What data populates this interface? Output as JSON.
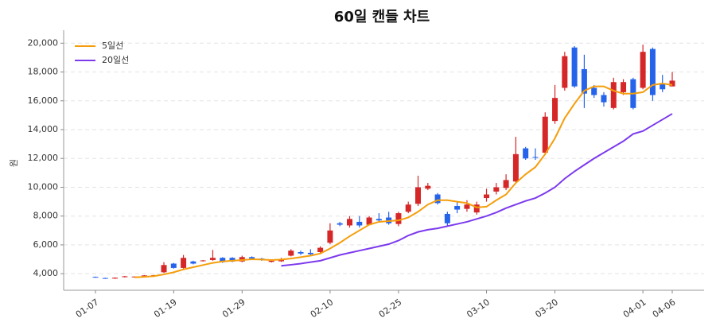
{
  "chart_data": {
    "type": "candlestick",
    "title": "60일 캔들 차트",
    "ylabel": "원",
    "categories": [
      "01-07",
      null,
      null,
      null,
      null,
      null,
      null,
      null,
      "01-19",
      null,
      null,
      null,
      null,
      null,
      null,
      "01-29",
      null,
      null,
      null,
      null,
      null,
      null,
      null,
      null,
      "02-10",
      null,
      null,
      null,
      null,
      null,
      null,
      "02-25",
      null,
      null,
      null,
      null,
      null,
      null,
      null,
      null,
      "03-10",
      null,
      null,
      null,
      null,
      null,
      null,
      "03-20",
      null,
      null,
      null,
      null,
      null,
      null,
      null,
      null,
      "04-01",
      null,
      null,
      "04-06"
    ],
    "open": [
      3780,
      3700,
      3660,
      3760,
      3770,
      3820,
      3850,
      4100,
      4700,
      4400,
      4850,
      4880,
      4950,
      5100,
      5100,
      4850,
      5150,
      5050,
      4820,
      4860,
      5250,
      5500,
      5450,
      5500,
      6150,
      7500,
      7350,
      7600,
      7400,
      7800,
      7900,
      7450,
      8300,
      8850,
      9900,
      9500,
      8150,
      8700,
      8500,
      8250,
      9250,
      9700,
      9950,
      10400,
      12700,
      12100,
      12400,
      14600,
      16900,
      19700,
      18200,
      16900,
      16400,
      15500,
      16600,
      17500,
      16900,
      19600,
      17200,
      17000
    ],
    "high": [
      3800,
      3720,
      3740,
      3840,
      3820,
      3900,
      3920,
      4800,
      4750,
      5300,
      4900,
      4950,
      5650,
      5150,
      5150,
      5250,
      5200,
      5100,
      4950,
      5100,
      5700,
      5600,
      5700,
      5900,
      7500,
      7600,
      8000,
      8000,
      8000,
      8200,
      8300,
      8300,
      9000,
      10800,
      10300,
      9600,
      8300,
      9000,
      9100,
      9000,
      9900,
      10300,
      10900,
      13500,
      12800,
      12700,
      15200,
      17100,
      19400,
      19800,
      19200,
      17100,
      16600,
      17600,
      17500,
      17600,
      19900,
      19700,
      17800,
      18000
    ],
    "low": [
      3720,
      3640,
      3640,
      3740,
      3750,
      3800,
      3830,
      4050,
      4350,
      4350,
      4650,
      4850,
      4900,
      4750,
      4800,
      4800,
      5000,
      4900,
      4780,
      4820,
      5200,
      5300,
      5300,
      5450,
      6050,
      7300,
      7200,
      7200,
      7350,
      7600,
      7400,
      7300,
      8200,
      8700,
      9800,
      8800,
      7300,
      8200,
      8300,
      8100,
      9000,
      9500,
      9800,
      10300,
      11900,
      11900,
      12300,
      14400,
      16700,
      16900,
      15500,
      16200,
      15600,
      15400,
      16400,
      15400,
      16800,
      16000,
      16600,
      17000
    ],
    "close": [
      3740,
      3660,
      3720,
      3820,
      3800,
      3880,
      3900,
      4600,
      4400,
      5100,
      4700,
      4920,
      5100,
      4800,
      4850,
      5150,
      5050,
      4950,
      4900,
      5000,
      5600,
      5400,
      5350,
      5800,
      7000,
      7400,
      7800,
      7350,
      7900,
      7700,
      7500,
      8200,
      8800,
      10000,
      10100,
      8900,
      7500,
      8450,
      8800,
      8800,
      9500,
      10000,
      10500,
      12300,
      12000,
      12050,
      14900,
      16200,
      19100,
      17000,
      16500,
      16400,
      15900,
      17300,
      17300,
      15500,
      19400,
      16400,
      16800,
      17400
    ],
    "up_color": "#d62728",
    "down_color": "#2563eb",
    "lines": [
      {
        "name": "5일선",
        "color": "#f59e0b",
        "values": [
          null,
          null,
          null,
          null,
          3750,
          3780,
          3830,
          3950,
          4100,
          4300,
          4450,
          4600,
          4750,
          4850,
          4900,
          4950,
          5000,
          4980,
          4950,
          4980,
          5050,
          5150,
          5250,
          5400,
          5750,
          6150,
          6600,
          7000,
          7400,
          7600,
          7650,
          7700,
          7900,
          8300,
          8800,
          9100,
          9100,
          9000,
          8900,
          8600,
          8650,
          9100,
          9500,
          10300,
          10900,
          11400,
          12300,
          13400,
          14800,
          15800,
          16700,
          17000,
          17000,
          16700,
          16500,
          16500,
          16600,
          17100,
          17200,
          17100
        ]
      },
      {
        "name": "20일선",
        "color": "#7c3aed",
        "values": [
          null,
          null,
          null,
          null,
          null,
          null,
          null,
          null,
          null,
          null,
          null,
          null,
          null,
          null,
          null,
          null,
          null,
          null,
          null,
          4550,
          4620,
          4700,
          4800,
          4900,
          5100,
          5300,
          5450,
          5600,
          5750,
          5900,
          6050,
          6300,
          6650,
          6900,
          7050,
          7150,
          7300,
          7450,
          7600,
          7800,
          8000,
          8250,
          8550,
          8800,
          9050,
          9250,
          9600,
          10000,
          10600,
          11100,
          11550,
          12000,
          12400,
          12800,
          13200,
          13700,
          13900,
          14300,
          14700,
          15100
        ]
      }
    ],
    "ylim": [
      2850,
      20900
    ],
    "yticks": [
      {
        "value": 4000,
        "label": "4,000"
      },
      {
        "value": 6000,
        "label": "6,000"
      },
      {
        "value": 8000,
        "label": "8,000"
      },
      {
        "value": 10000,
        "label": "10,000"
      },
      {
        "value": 12000,
        "label": "12,000"
      },
      {
        "value": 14000,
        "label": "14,000"
      },
      {
        "value": 16000,
        "label": "16,000"
      },
      {
        "value": 18000,
        "label": "18,000"
      },
      {
        "value": 20000,
        "label": "20,000"
      }
    ],
    "grid": true,
    "legend": "upper left"
  }
}
